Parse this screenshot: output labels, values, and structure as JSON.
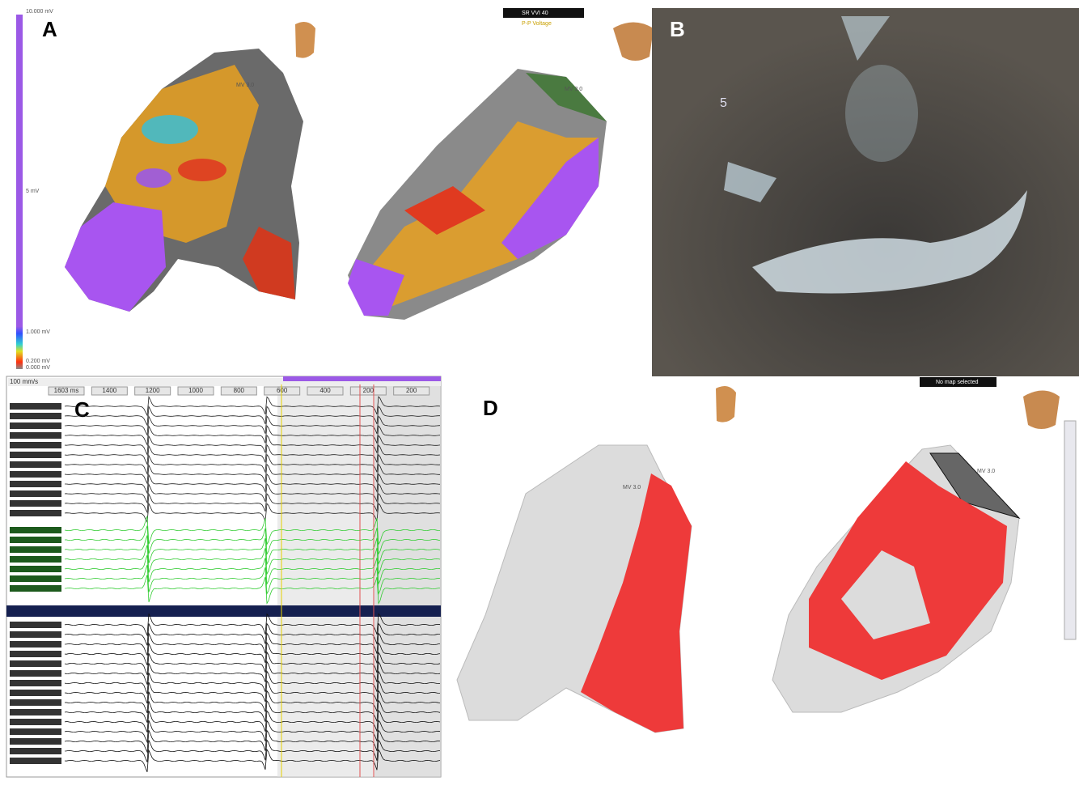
{
  "panels": {
    "a": {
      "label": "A",
      "scale_labels": [
        "10.000 mV",
        "5 mV",
        "1.000 mV",
        "0.200 mV",
        "0.000 mV"
      ],
      "map_selector": "SR VVI 40",
      "map_type": "P-P Voltage",
      "valve_labels": [
        "MV 3.0",
        "MV 3.0"
      ]
    },
    "b": {
      "label": "B",
      "depth_marker": "5"
    },
    "c": {
      "label": "C",
      "sweep_speed": "100 mm/s",
      "timeline_labels": [
        "1603 ms",
        "1400",
        "1200",
        "1000",
        "800",
        "600",
        "400",
        "200",
        "200"
      ]
    },
    "d": {
      "label": "D",
      "map_selector": "No map selected",
      "valve_labels": [
        "MV 3.0",
        "MV 3.0"
      ]
    }
  }
}
